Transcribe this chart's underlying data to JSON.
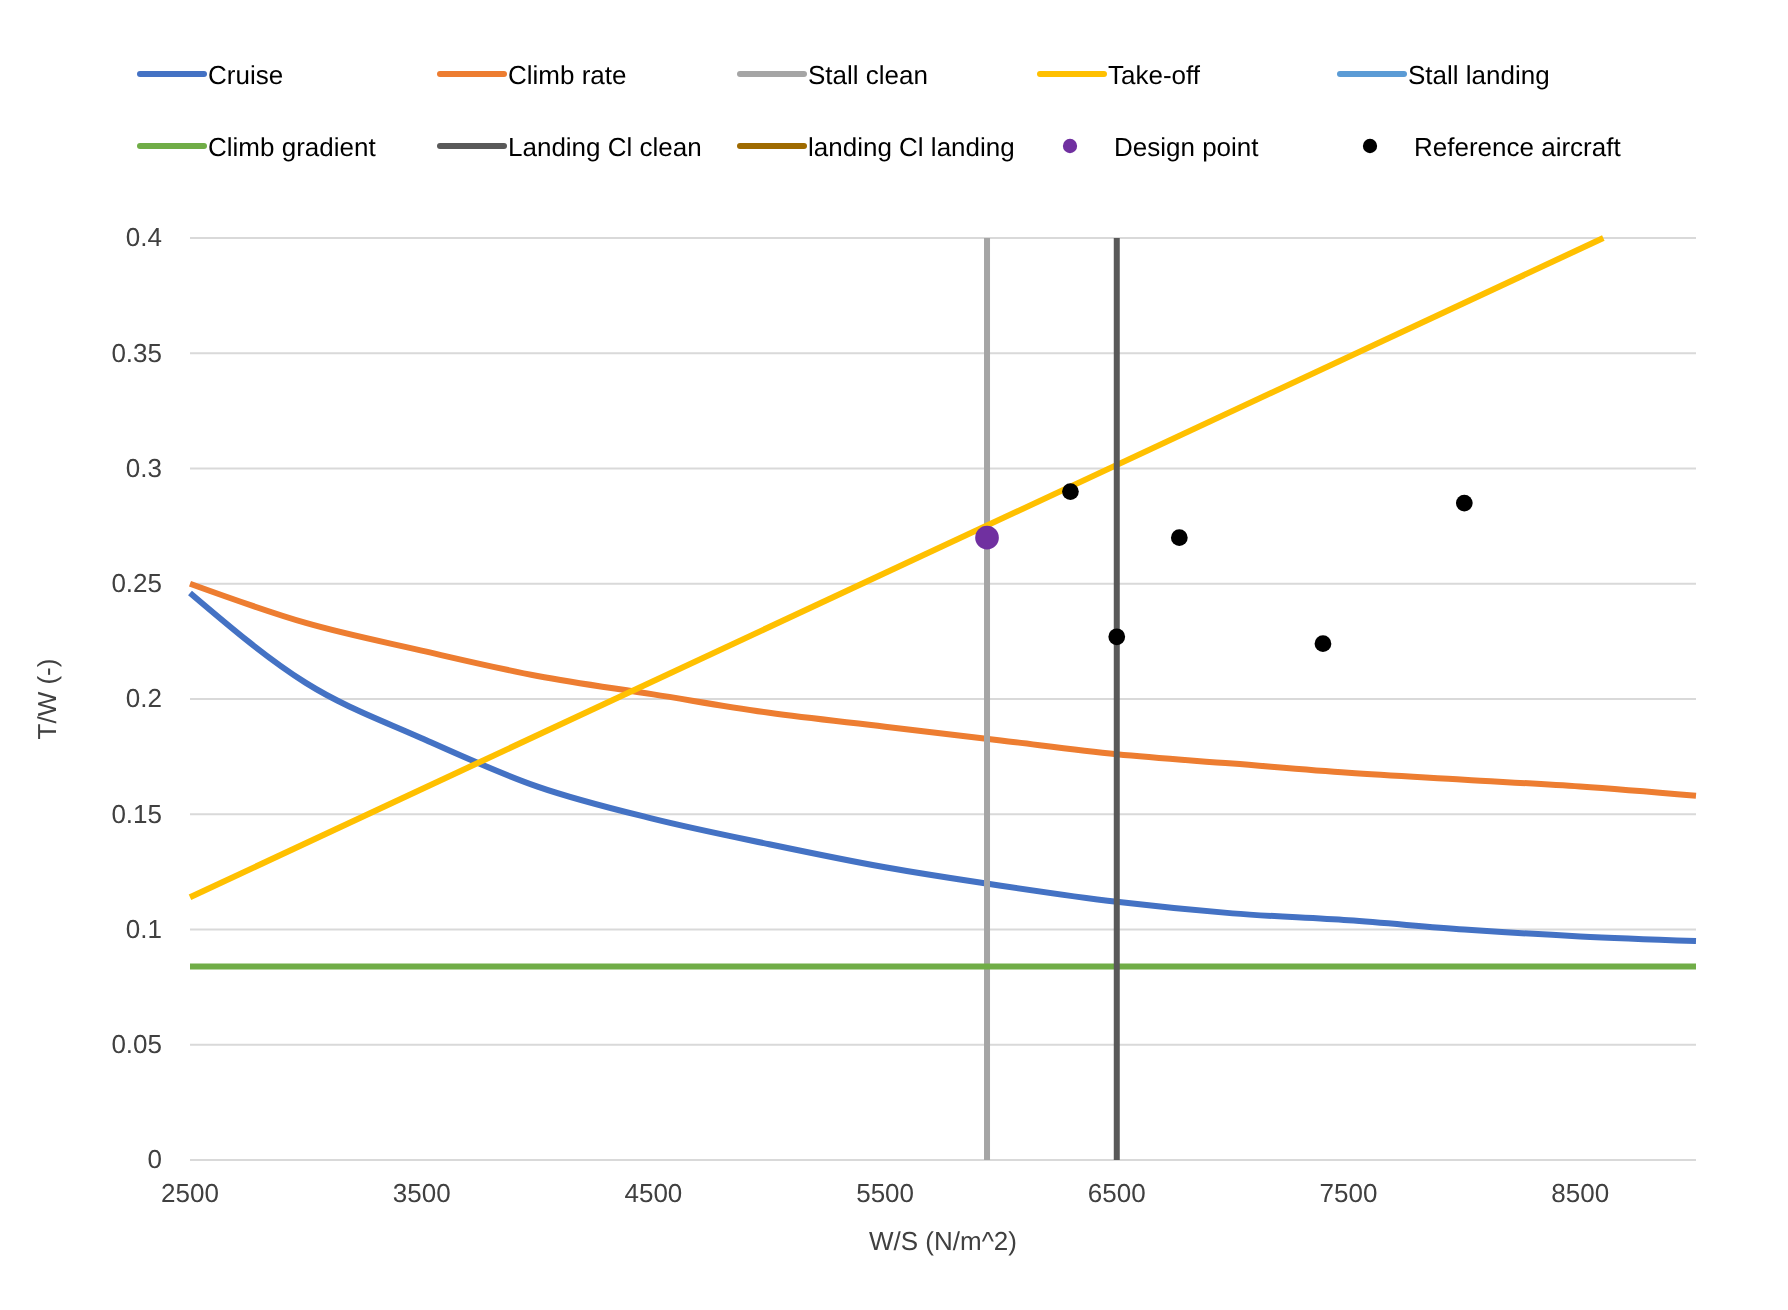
{
  "chart_data": {
    "type": "line",
    "xlabel": "W/S (N/m^2)",
    "ylabel": "T/W (-)",
    "xlim": [
      2500,
      9000
    ],
    "xticks": [
      2500,
      3500,
      4500,
      5500,
      6500,
      7500,
      8500
    ],
    "ylim": [
      0,
      0.4
    ],
    "yticks": [
      0,
      {
        "value": 0.05,
        "label": "0.05"
      },
      {
        "value": 0.1,
        "label": "0.1"
      },
      {
        "value": 0.15,
        "label": "0.15"
      },
      {
        "value": 0.2,
        "label": "0.2"
      },
      {
        "value": 0.25,
        "label": "0.25"
      },
      {
        "value": 0.3,
        "label": "0.3"
      },
      {
        "value": 0.35,
        "label": "0.35"
      },
      {
        "value": 0.4,
        "label": "0.4"
      }
    ],
    "grid": "y",
    "legend": "top",
    "series": [
      {
        "name": "Cruise",
        "color": "#4472c4",
        "x": [
          2500,
          3000,
          3500,
          4000,
          4500,
          5000,
          5500,
          6000,
          6500,
          7000,
          7500,
          8000,
          8500,
          9000
        ],
        "values": [
          0.246,
          0.207,
          0.183,
          0.162,
          0.148,
          0.137,
          0.127,
          0.119,
          0.112,
          0.107,
          0.104,
          0.1,
          0.097,
          0.095
        ]
      },
      {
        "name": "Climb rate",
        "color": "#ed7d31",
        "x": [
          2500,
          3000,
          3500,
          4000,
          4500,
          5000,
          5500,
          6000,
          6500,
          7000,
          7500,
          8000,
          8500,
          9000
        ],
        "values": [
          0.25,
          0.233,
          0.221,
          0.21,
          0.202,
          0.194,
          0.188,
          0.182,
          0.176,
          0.172,
          0.168,
          0.165,
          0.162,
          0.158
        ]
      },
      {
        "name": "Stall clean",
        "color": "#a5a5a5",
        "x": [
          5940,
          5940
        ],
        "values": [
          0,
          0.4
        ]
      },
      {
        "name": "Take-off",
        "color": "#ffc000",
        "x": [
          2500,
          8600
        ],
        "values": [
          0.114,
          0.4
        ]
      },
      {
        "name": "Stall landing",
        "color": "#5b9bd5"
      },
      {
        "name": "Climb gradient",
        "color": "#70ad47",
        "x": [
          2500,
          9000
        ],
        "values": [
          0.084,
          0.084
        ]
      },
      {
        "name": "Landing Cl clean",
        "color": "#595959",
        "x": [
          6500,
          6500
        ],
        "values": [
          0,
          0.4
        ]
      },
      {
        "name": "landing Cl landing",
        "color": "#9e6a00"
      },
      {
        "name": "Design point",
        "type": "scatter",
        "color": "#7030a0",
        "marker": "circle",
        "x": [
          5940
        ],
        "values": [
          0.27
        ]
      },
      {
        "name": "Reference aircraft",
        "type": "scatter",
        "color": "#000000",
        "marker": "circle",
        "x": [
          6300,
          6500,
          6770,
          7390,
          8000
        ],
        "values": [
          0.29,
          0.227,
          0.27,
          0.224,
          0.285
        ]
      }
    ]
  }
}
